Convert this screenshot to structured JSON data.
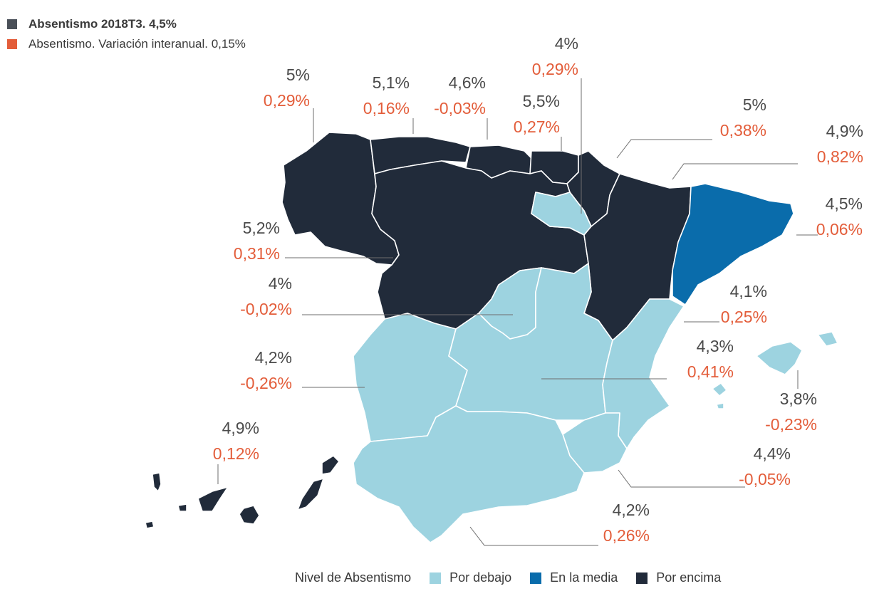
{
  "legend_top": {
    "items": [
      {
        "label": "Absentismo 2018T3. 4,5%",
        "color": "#4a5058"
      },
      {
        "label": "Absentismo. Variación interanual. 0,15%",
        "color": "#e35d3a"
      }
    ]
  },
  "legend_bottom": {
    "title": "Nivel de Absentismo",
    "items": [
      {
        "label": "Por debajo",
        "color": "#9dd3e0"
      },
      {
        "label": "En la media",
        "color": "#0a6cab"
      },
      {
        "label": "Por encima",
        "color": "#212b3a"
      }
    ]
  },
  "regions": [
    {
      "name": "Galicia",
      "level": "Por encima",
      "absentismo": "5,2%",
      "variacion": "0,31%"
    },
    {
      "name": "Asturias",
      "level": "Por encima",
      "absentismo": "5%",
      "variacion": "0,29%"
    },
    {
      "name": "Cantabria",
      "level": "Por encima",
      "absentismo": "5,1%",
      "variacion": "0,16%"
    },
    {
      "name": "País Vasco",
      "level": "Por encima",
      "absentismo": "4,6%",
      "variacion": "-0,03%"
    },
    {
      "name": "Navarra",
      "level": "Por encima",
      "absentismo": "5,5%",
      "variacion": "0,27%"
    },
    {
      "name": "La Rioja",
      "level": "Por debajo",
      "absentismo": "4%",
      "variacion": "0,29%"
    },
    {
      "name": "Aragón",
      "level": "Por encima",
      "absentismo": "5%",
      "variacion": "0,38%"
    },
    {
      "name": "Castilla y León",
      "level": "Por encima",
      "absentismo": "4,9%",
      "variacion": "0,82%"
    },
    {
      "name": "Cataluña",
      "level": "En la media",
      "absentismo": "4,5%",
      "variacion": "0,06%"
    },
    {
      "name": "Comunidad Valenciana",
      "level": "Por debajo",
      "absentismo": "4,1%",
      "variacion": "0,25%"
    },
    {
      "name": "Madrid",
      "level": "Por debajo",
      "absentismo": "4%",
      "variacion": "-0,02%"
    },
    {
      "name": "Castilla-La Mancha",
      "level": "Por debajo",
      "absentismo": "4,3%",
      "variacion": "0,41%"
    },
    {
      "name": "Extremadura",
      "level": "Por debajo",
      "absentismo": "4,2%",
      "variacion": "-0,26%"
    },
    {
      "name": "Baleares",
      "level": "Por debajo",
      "absentismo": "3,8%",
      "variacion": "-0,23%"
    },
    {
      "name": "Murcia",
      "level": "Por debajo",
      "absentismo": "4,4%",
      "variacion": "-0,05%"
    },
    {
      "name": "Andalucía",
      "level": "Por debajo",
      "absentismo": "4,2%",
      "variacion": "0,26%"
    },
    {
      "name": "Canarias",
      "level": "Por encima",
      "absentismo": "4,9%",
      "variacion": "0,12%"
    }
  ]
}
